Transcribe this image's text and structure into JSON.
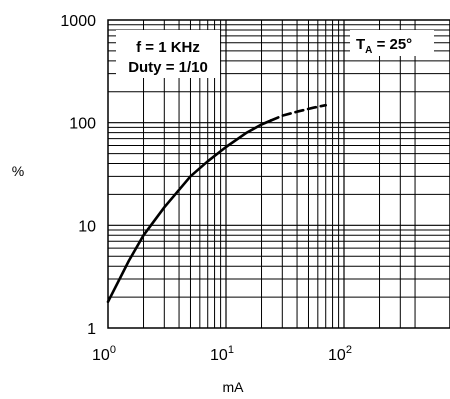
{
  "chart_data": {
    "type": "line",
    "x_scale": "log",
    "y_scale": "log",
    "xlim": [
      1,
      450
    ],
    "ylim": [
      1,
      1000
    ],
    "grid": true,
    "xlabel": "mA",
    "ylabel": "%",
    "x_tick_labels": [
      {
        "base": "10",
        "exp": "0"
      },
      {
        "base": "10",
        "exp": "1"
      },
      {
        "base": "10",
        "exp": "2"
      }
    ],
    "y_tick_labels": [
      "1",
      "10",
      "100",
      "1000"
    ],
    "annotations": {
      "left_box": [
        "f = 1 KHz",
        "Duty = 1/10"
      ],
      "right_box": {
        "prefix": "T",
        "subscript": "A",
        "suffix": " = 25°"
      }
    },
    "series": [
      {
        "style": "solid",
        "points": [
          [
            1,
            1.8
          ],
          [
            1.5,
            4.5
          ],
          [
            2,
            8
          ],
          [
            3,
            15
          ],
          [
            5,
            30
          ],
          [
            7,
            42
          ],
          [
            10,
            58
          ],
          [
            15,
            80
          ],
          [
            20,
            96
          ],
          [
            24,
            105
          ]
        ]
      },
      {
        "style": "dashed",
        "points": [
          [
            24,
            105
          ],
          [
            30,
            117
          ],
          [
            40,
            128
          ],
          [
            55,
            140
          ],
          [
            70,
            148
          ]
        ]
      }
    ]
  }
}
